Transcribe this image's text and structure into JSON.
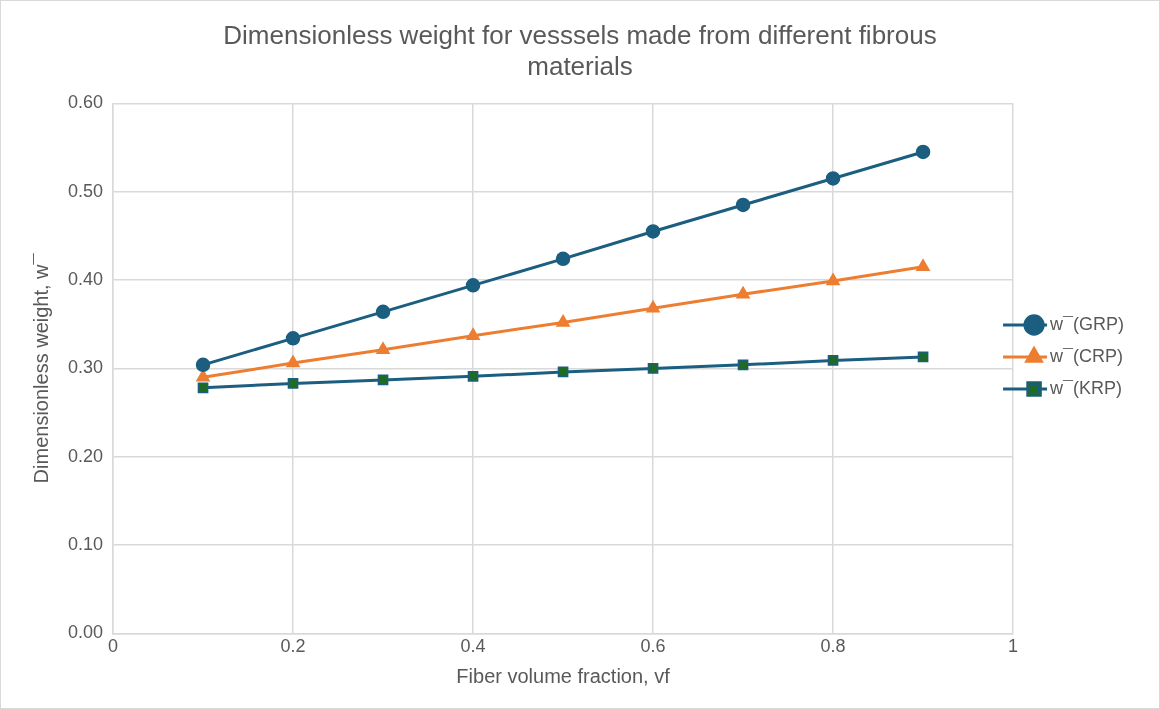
{
  "chart_data": {
    "type": "line",
    "title": "Dimensionless weight for vesssels made from different fibrous materials",
    "xlabel": "Fiber volume fraction, vf",
    "ylabel": "Dimensionless weight, w¯",
    "x": [
      0.1,
      0.2,
      0.3,
      0.4,
      0.5,
      0.6,
      0.7,
      0.8,
      0.9
    ],
    "series": [
      {
        "name": "w¯(GRP)",
        "color": "#1b5e80",
        "marker": "circle",
        "values": [
          0.304,
          0.334,
          0.364,
          0.394,
          0.424,
          0.455,
          0.485,
          0.515,
          0.545
        ]
      },
      {
        "name": "w¯(CRP)",
        "color": "#ed7d31",
        "marker": "triangle",
        "values": [
          0.29,
          0.306,
          0.321,
          0.337,
          0.352,
          0.368,
          0.384,
          0.399,
          0.415
        ]
      },
      {
        "name": "w¯(KRP)",
        "color": "#1b5e80",
        "marker": "square",
        "colors": [
          "#1e6b23",
          "#1e6b23",
          "#1e6b23",
          "#1e6b23",
          "#1e6b23",
          "#1e6b23",
          "#1e6b23",
          "#1e6b23",
          "#1e6b23"
        ],
        "values": [
          0.278,
          0.283,
          0.287,
          0.291,
          0.296,
          0.3,
          0.304,
          0.309,
          0.313
        ]
      }
    ],
    "xlim": [
      0,
      1
    ],
    "xticks": [
      0,
      0.2,
      0.4,
      0.6,
      0.8,
      1
    ],
    "ylim": [
      0,
      0.6
    ],
    "yticks": [
      {
        "value": 0,
        "label": "0.00"
      },
      {
        "value": 0.1,
        "label": "0.10"
      },
      {
        "value": 0.2,
        "label": "0.20"
      },
      {
        "value": 0.3,
        "label": "0.30"
      },
      {
        "value": 0.4,
        "label": "0.40"
      },
      {
        "value": 0.5,
        "label": "0.50"
      },
      {
        "value": 0.6,
        "label": "0.60"
      }
    ],
    "grid": true,
    "legend": "right",
    "line_style": "solid"
  }
}
